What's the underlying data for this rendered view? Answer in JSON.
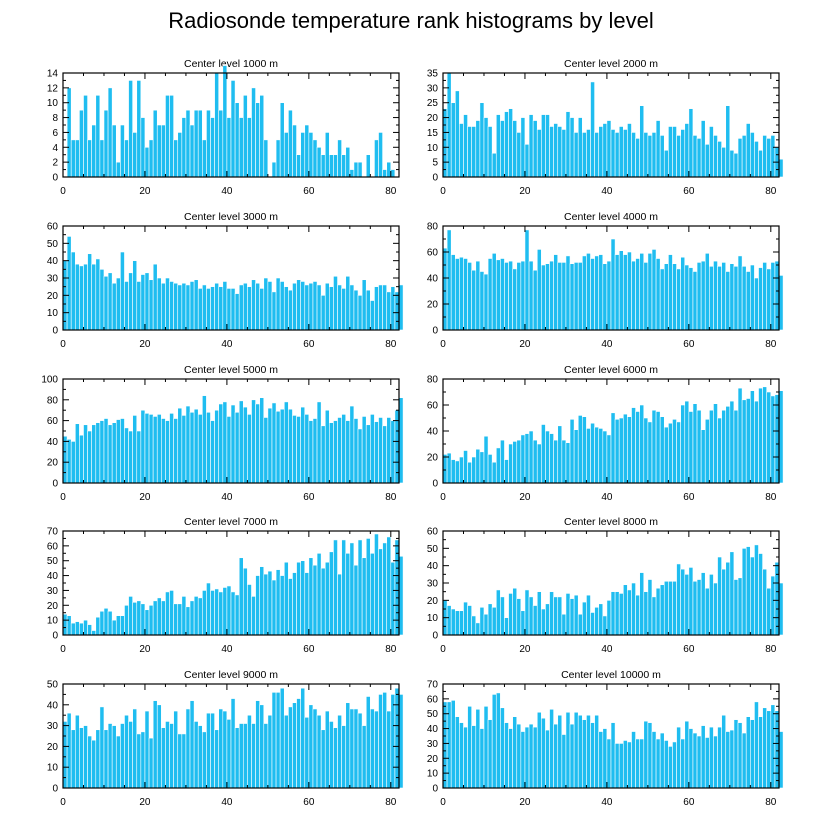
{
  "title": "Radiosonde temperature rank histograms by level",
  "colors": {
    "bar": "#1fbdf0",
    "bar_edge": "#ffffff",
    "axis": "#000000"
  },
  "chart_data": [
    {
      "type": "bar",
      "title": "Center level 1000 m",
      "xlim": [
        0,
        82
      ],
      "ylim": [
        0,
        14
      ],
      "xticks": [
        0,
        20,
        40,
        60,
        80
      ],
      "yticks": [
        0,
        2,
        4,
        6,
        8,
        10,
        12,
        14
      ],
      "values": [
        0,
        12,
        5,
        5,
        9,
        11,
        5,
        7,
        11,
        5,
        9,
        12,
        7,
        2,
        7,
        5,
        13,
        6,
        13,
        8,
        4,
        5,
        9,
        7,
        7,
        11,
        11,
        5,
        6,
        8,
        9,
        7,
        9,
        9,
        5,
        9,
        8,
        14,
        9,
        15,
        8,
        13,
        10,
        8,
        11,
        8,
        12,
        10,
        11,
        5,
        0,
        2,
        5,
        10,
        6,
        9,
        7,
        3,
        6,
        7,
        6,
        5,
        4,
        3,
        6,
        3,
        3,
        5,
        3,
        4,
        1,
        2,
        2,
        0,
        3,
        0,
        5,
        6,
        1,
        2,
        1
      ]
    },
    {
      "type": "bar",
      "title": "Center level 2000 m",
      "xlim": [
        0,
        82
      ],
      "ylim": [
        0,
        35
      ],
      "xticks": [
        0,
        20,
        40,
        60,
        80
      ],
      "yticks": [
        0,
        5,
        10,
        15,
        20,
        25,
        30,
        35
      ],
      "values": [
        23,
        35,
        25,
        29,
        18,
        21,
        17,
        17,
        19,
        25,
        20,
        17,
        8,
        21,
        19,
        22,
        23,
        19,
        15,
        20,
        11,
        21,
        19,
        16,
        21,
        21,
        17,
        18,
        17,
        16,
        22,
        20,
        15,
        20,
        15,
        16,
        32,
        15,
        17,
        18,
        19,
        16,
        15,
        17,
        16,
        18,
        15,
        13,
        24,
        15,
        14,
        15,
        19,
        14,
        9,
        17,
        17,
        14,
        16,
        18,
        23,
        14,
        13,
        19,
        11,
        17,
        14,
        12,
        10,
        24,
        9,
        8,
        13,
        14,
        18,
        15,
        12,
        9,
        14,
        13,
        14,
        10,
        6
      ]
    },
    {
      "type": "bar",
      "title": "Center level 3000 m",
      "xlim": [
        0,
        82
      ],
      "ylim": [
        0,
        60
      ],
      "xticks": [
        0,
        20,
        40,
        60,
        80
      ],
      "yticks": [
        0,
        10,
        20,
        30,
        40,
        50,
        60
      ],
      "values": [
        40,
        54,
        45,
        38,
        37,
        38,
        44,
        38,
        41,
        35,
        31,
        33,
        27,
        30,
        45,
        28,
        33,
        40,
        28,
        32,
        33,
        29,
        38,
        30,
        27,
        30,
        28,
        27,
        26,
        27,
        26,
        28,
        29,
        24,
        26,
        24,
        25,
        27,
        25,
        28,
        24,
        24,
        21,
        26,
        27,
        25,
        29,
        27,
        24,
        30,
        28,
        22,
        30,
        28,
        25,
        23,
        27,
        29,
        28,
        26,
        27,
        28,
        26,
        20,
        27,
        25,
        31,
        26,
        24,
        31,
        26,
        23,
        20,
        29,
        23,
        17,
        25,
        26,
        26,
        22,
        25,
        22,
        26
      ]
    },
    {
      "type": "bar",
      "title": "Center level 4000 m",
      "xlim": [
        0,
        82
      ],
      "ylim": [
        0,
        80
      ],
      "xticks": [
        0,
        20,
        40,
        60,
        80
      ],
      "yticks": [
        0,
        20,
        40,
        60,
        80
      ],
      "values": [
        63,
        77,
        58,
        55,
        56,
        55,
        52,
        46,
        53,
        45,
        43,
        55,
        59,
        54,
        55,
        52,
        53,
        47,
        52,
        53,
        77,
        53,
        46,
        62,
        50,
        51,
        53,
        58,
        52,
        52,
        57,
        51,
        52,
        52,
        57,
        59,
        55,
        57,
        58,
        51,
        53,
        70,
        58,
        61,
        58,
        60,
        53,
        55,
        59,
        52,
        59,
        62,
        55,
        47,
        51,
        58,
        51,
        47,
        56,
        50,
        48,
        45,
        52,
        53,
        59,
        49,
        53,
        49,
        52,
        45,
        51,
        49,
        57,
        49,
        45,
        50,
        40,
        48,
        52,
        47,
        52,
        53,
        42
      ]
    },
    {
      "type": "bar",
      "title": "Center level 5000 m",
      "xlim": [
        0,
        82
      ],
      "ylim": [
        0,
        100
      ],
      "xticks": [
        0,
        20,
        40,
        60,
        80
      ],
      "yticks": [
        0,
        20,
        40,
        60,
        80,
        100
      ],
      "values": [
        45,
        42,
        40,
        57,
        46,
        56,
        50,
        56,
        58,
        60,
        62,
        56,
        58,
        61,
        62,
        53,
        50,
        65,
        50,
        70,
        67,
        66,
        64,
        66,
        62,
        60,
        67,
        62,
        72,
        65,
        74,
        68,
        71,
        66,
        84,
        68,
        60,
        70,
        76,
        78,
        64,
        75,
        68,
        79,
        73,
        66,
        80,
        76,
        82,
        63,
        72,
        77,
        69,
        71,
        78,
        71,
        65,
        64,
        73,
        66,
        60,
        62,
        78,
        55,
        70,
        58,
        60,
        63,
        66,
        60,
        74,
        62,
        52,
        64,
        56,
        66,
        59,
        63,
        55,
        63,
        60,
        70,
        82
      ]
    },
    {
      "type": "bar",
      "title": "Center level 6000 m",
      "xlim": [
        0,
        82
      ],
      "ylim": [
        0,
        80
      ],
      "xticks": [
        0,
        20,
        40,
        60,
        80
      ],
      "yticks": [
        0,
        20,
        40,
        60,
        80
      ],
      "values": [
        22,
        23,
        18,
        17,
        20,
        25,
        16,
        20,
        26,
        24,
        36,
        22,
        16,
        27,
        33,
        18,
        30,
        32,
        33,
        37,
        38,
        40,
        33,
        30,
        45,
        40,
        38,
        33,
        44,
        33,
        31,
        49,
        41,
        52,
        51,
        42,
        46,
        43,
        42,
        40,
        37,
        54,
        49,
        50,
        53,
        51,
        58,
        55,
        60,
        50,
        47,
        56,
        55,
        51,
        43,
        46,
        49,
        47,
        60,
        63,
        55,
        61,
        56,
        41,
        49,
        56,
        61,
        50,
        56,
        59,
        63,
        56,
        73,
        64,
        65,
        71,
        63,
        73,
        74,
        70,
        67,
        68,
        71
      ]
    },
    {
      "type": "bar",
      "title": "Center level 7000 m",
      "xlim": [
        0,
        82
      ],
      "ylim": [
        0,
        70
      ],
      "xticks": [
        0,
        20,
        40,
        60,
        80
      ],
      "yticks": [
        0,
        10,
        20,
        30,
        40,
        50,
        60,
        70
      ],
      "values": [
        14,
        13,
        8,
        9,
        8,
        10,
        7,
        3,
        12,
        16,
        18,
        16,
        10,
        13,
        13,
        20,
        26,
        22,
        23,
        21,
        17,
        20,
        23,
        25,
        23,
        29,
        30,
        21,
        21,
        26,
        19,
        23,
        26,
        25,
        30,
        35,
        30,
        31,
        29,
        32,
        33,
        29,
        27,
        52,
        45,
        34,
        26,
        40,
        46,
        41,
        43,
        37,
        44,
        40,
        49,
        38,
        42,
        49,
        50,
        42,
        52,
        47,
        55,
        45,
        49,
        56,
        64,
        41,
        64,
        55,
        62,
        47,
        64,
        52,
        65,
        55,
        68,
        58,
        62,
        66,
        49,
        64,
        53
      ]
    },
    {
      "type": "bar",
      "title": "Center level 8000 m",
      "xlim": [
        0,
        82
      ],
      "ylim": [
        0,
        60
      ],
      "xticks": [
        0,
        20,
        40,
        60,
        80
      ],
      "yticks": [
        0,
        10,
        20,
        30,
        40,
        50,
        60
      ],
      "values": [
        20,
        17,
        15,
        14,
        14,
        19,
        17,
        11,
        7,
        16,
        12,
        18,
        16,
        26,
        22,
        10,
        24,
        27,
        21,
        14,
        26,
        22,
        17,
        25,
        15,
        18,
        25,
        22,
        22,
        12,
        24,
        21,
        23,
        12,
        19,
        23,
        13,
        16,
        18,
        11,
        20,
        25,
        25,
        24,
        29,
        26,
        30,
        23,
        36,
        25,
        32,
        22,
        27,
        29,
        31,
        31,
        31,
        41,
        38,
        35,
        39,
        31,
        32,
        36,
        27,
        35,
        30,
        45,
        38,
        42,
        48,
        32,
        33,
        50,
        51,
        45,
        52,
        47,
        38,
        27,
        34,
        42,
        30
      ]
    },
    {
      "type": "bar",
      "title": "Center level 9000 m",
      "xlim": [
        0,
        82
      ],
      "ylim": [
        0,
        50
      ],
      "xticks": [
        0,
        20,
        40,
        60,
        80
      ],
      "yticks": [
        0,
        10,
        20,
        30,
        40,
        50
      ],
      "values": [
        32,
        36,
        28,
        35,
        29,
        30,
        25,
        23,
        28,
        39,
        28,
        31,
        30,
        25,
        31,
        35,
        32,
        38,
        26,
        27,
        37,
        24,
        42,
        40,
        29,
        32,
        31,
        37,
        26,
        26,
        38,
        42,
        32,
        30,
        27,
        36,
        36,
        28,
        38,
        37,
        33,
        43,
        29,
        31,
        31,
        35,
        31,
        42,
        40,
        31,
        35,
        46,
        46,
        48,
        35,
        39,
        41,
        43,
        48,
        34,
        40,
        38,
        35,
        28,
        37,
        32,
        29,
        35,
        30,
        41,
        38,
        38,
        36,
        30,
        44,
        38,
        37,
        45,
        46,
        37,
        45,
        48,
        45
      ]
    },
    {
      "type": "bar",
      "title": "Center level 10000 m",
      "xlim": [
        0,
        82
      ],
      "ylim": [
        0,
        70
      ],
      "xticks": [
        0,
        20,
        40,
        60,
        80
      ],
      "yticks": [
        0,
        10,
        20,
        30,
        40,
        50,
        60,
        70
      ],
      "values": [
        58,
        58,
        59,
        48,
        44,
        41,
        55,
        42,
        53,
        40,
        55,
        46,
        63,
        64,
        54,
        44,
        40,
        48,
        43,
        38,
        41,
        43,
        41,
        51,
        47,
        39,
        53,
        43,
        49,
        36,
        51,
        43,
        51,
        49,
        46,
        49,
        44,
        49,
        38,
        40,
        33,
        44,
        30,
        30,
        32,
        31,
        38,
        33,
        33,
        45,
        44,
        38,
        33,
        37,
        32,
        28,
        31,
        41,
        33,
        45,
        40,
        37,
        35,
        42,
        34,
        41,
        35,
        41,
        49,
        38,
        39,
        46,
        44,
        37,
        48,
        46,
        58,
        48,
        54,
        52,
        56,
        52,
        38
      ]
    }
  ]
}
